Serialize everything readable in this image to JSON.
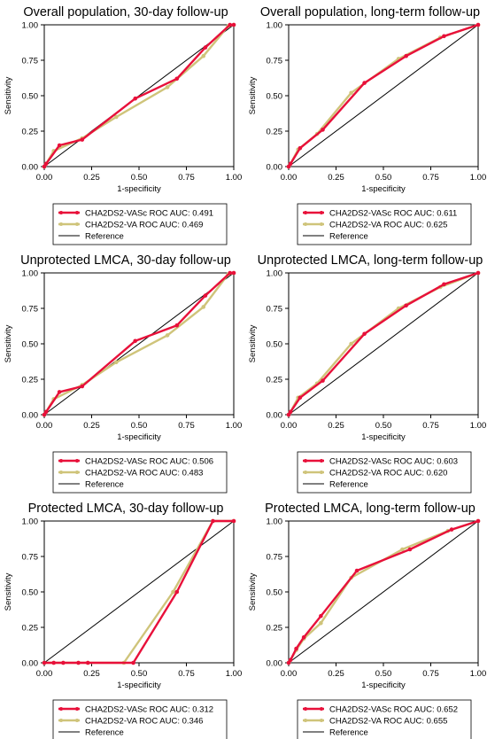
{
  "colors": {
    "vasc": "#e8103a",
    "va": "#cfc47a",
    "reference": "#000000",
    "frame": "#000000"
  },
  "chart_data": [
    {
      "type": "line",
      "title": "Overall population, 30-day follow-up",
      "xlabel": "1-specificity",
      "ylabel": "Sensitivity",
      "xlim": [
        0,
        1
      ],
      "ylim": [
        0,
        1
      ],
      "xticks": [
        "0.00",
        "0.25",
        "0.50",
        "0.75",
        "1.00"
      ],
      "yticks": [
        "0.00",
        "0.25",
        "0.50",
        "0.75",
        "1.00"
      ],
      "legend": "below",
      "series": [
        {
          "name": "CHA2DS2-VASc ROC AUC: 0.491",
          "color_key": "vasc",
          "x": [
            0,
            0.01,
            0.08,
            0.2,
            0.48,
            0.7,
            0.85,
            0.98,
            1
          ],
          "y": [
            0,
            0.02,
            0.15,
            0.19,
            0.48,
            0.62,
            0.84,
            1.0,
            1
          ]
        },
        {
          "name": "CHA2DS2-VA ROC AUC: 0.469",
          "color_key": "va",
          "x": [
            0,
            0.01,
            0.05,
            0.2,
            0.38,
            0.65,
            0.84,
            0.97,
            1
          ],
          "y": [
            0,
            0.02,
            0.11,
            0.2,
            0.35,
            0.56,
            0.78,
            0.99,
            1
          ]
        },
        {
          "name": "Reference",
          "color_key": "reference",
          "reference": true,
          "x": [
            0,
            1
          ],
          "y": [
            0,
            1
          ]
        }
      ]
    },
    {
      "type": "line",
      "title": "Overall population, long-term follow-up",
      "xlabel": "1-specificity",
      "ylabel": "Sensitivity",
      "xlim": [
        0,
        1
      ],
      "ylim": [
        0,
        1
      ],
      "xticks": [
        "0.00",
        "0.25",
        "0.50",
        "0.75",
        "1.00"
      ],
      "yticks": [
        "0.00",
        "0.25",
        "0.50",
        "0.75",
        "1.00"
      ],
      "legend": "below",
      "series": [
        {
          "name": "CHA2DS2-VASc ROC AUC: 0.611",
          "color_key": "vasc",
          "x": [
            0,
            0.01,
            0.06,
            0.18,
            0.4,
            0.62,
            0.82,
            1
          ],
          "y": [
            0,
            0.02,
            0.13,
            0.26,
            0.59,
            0.78,
            0.92,
            1
          ]
        },
        {
          "name": "CHA2DS2-VA ROC AUC: 0.625",
          "color_key": "va",
          "x": [
            0,
            0.01,
            0.05,
            0.15,
            0.33,
            0.58,
            0.8,
            1
          ],
          "y": [
            0,
            0.02,
            0.12,
            0.23,
            0.52,
            0.76,
            0.91,
            1
          ]
        },
        {
          "name": "Reference",
          "color_key": "reference",
          "reference": true,
          "x": [
            0,
            1
          ],
          "y": [
            0,
            1
          ]
        }
      ]
    },
    {
      "type": "line",
      "title": "Unprotected LMCA, 30-day follow-up",
      "xlabel": "1-specificity",
      "ylabel": "Sensitivity",
      "xlim": [
        0,
        1
      ],
      "ylim": [
        0,
        1
      ],
      "xticks": [
        "0.00",
        "0.25",
        "0.50",
        "0.75",
        "1.00"
      ],
      "yticks": [
        "0.00",
        "0.25",
        "0.50",
        "0.75",
        "1.00"
      ],
      "legend": "below",
      "series": [
        {
          "name": "CHA2DS2-VASc ROC AUC: 0.506",
          "color_key": "vasc",
          "x": [
            0,
            0.01,
            0.08,
            0.2,
            0.48,
            0.7,
            0.85,
            0.98,
            1
          ],
          "y": [
            0,
            0.02,
            0.16,
            0.2,
            0.52,
            0.63,
            0.84,
            1.0,
            1
          ]
        },
        {
          "name": "CHA2DS2-VA ROC AUC: 0.483",
          "color_key": "va",
          "x": [
            0,
            0.01,
            0.05,
            0.2,
            0.38,
            0.65,
            0.84,
            0.97,
            1
          ],
          "y": [
            0,
            0.02,
            0.11,
            0.21,
            0.37,
            0.56,
            0.76,
            0.99,
            1
          ]
        },
        {
          "name": "Reference",
          "color_key": "reference",
          "reference": true,
          "x": [
            0,
            1
          ],
          "y": [
            0,
            1
          ]
        }
      ]
    },
    {
      "type": "line",
      "title": "Unprotected LMCA, long-term follow-up",
      "xlabel": "1-specificity",
      "ylabel": "Sensitivity",
      "xlim": [
        0,
        1
      ],
      "ylim": [
        0,
        1
      ],
      "xticks": [
        "0.00",
        "0.25",
        "0.50",
        "0.75",
        "1.00"
      ],
      "yticks": [
        "0.00",
        "0.25",
        "0.50",
        "0.75",
        "1.00"
      ],
      "legend": "below",
      "series": [
        {
          "name": "CHA2DS2-VASc ROC AUC: 0.603",
          "color_key": "vasc",
          "x": [
            0,
            0.01,
            0.06,
            0.18,
            0.4,
            0.62,
            0.82,
            1
          ],
          "y": [
            0,
            0.02,
            0.12,
            0.24,
            0.57,
            0.77,
            0.92,
            1
          ]
        },
        {
          "name": "CHA2DS2-VA ROC AUC: 0.620",
          "color_key": "va",
          "x": [
            0,
            0.01,
            0.05,
            0.15,
            0.33,
            0.58,
            0.8,
            1
          ],
          "y": [
            0,
            0.02,
            0.12,
            0.22,
            0.5,
            0.75,
            0.9,
            1
          ]
        },
        {
          "name": "Reference",
          "color_key": "reference",
          "reference": true,
          "x": [
            0,
            1
          ],
          "y": [
            0,
            1
          ]
        }
      ]
    },
    {
      "type": "line",
      "title": "Protected LMCA, 30-day follow-up",
      "xlabel": "1-specificity",
      "ylabel": "Sensitivity",
      "xlim": [
        0,
        1
      ],
      "ylim": [
        0,
        1
      ],
      "xticks": [
        "0.00",
        "0.25",
        "0.50",
        "0.75",
        "1.00"
      ],
      "yticks": [
        "0.00",
        "0.25",
        "0.50",
        "0.75",
        "1.00"
      ],
      "legend": "below",
      "series": [
        {
          "name": "CHA2DS2-VASc ROC AUC: 0.312",
          "color_key": "vasc",
          "x": [
            0,
            0.05,
            0.1,
            0.18,
            0.23,
            0.47,
            0.7,
            0.89,
            1
          ],
          "y": [
            0,
            0,
            0,
            0,
            0,
            0,
            0.5,
            1.0,
            1
          ]
        },
        {
          "name": "CHA2DS2-VA ROC AUC: 0.346",
          "color_key": "va",
          "x": [
            0,
            0.05,
            0.1,
            0.18,
            0.23,
            0.42,
            0.68,
            0.89,
            1
          ],
          "y": [
            0,
            0,
            0,
            0,
            0,
            0,
            0.5,
            1.0,
            1
          ]
        },
        {
          "name": "Reference",
          "color_key": "reference",
          "reference": true,
          "x": [
            0,
            1
          ],
          "y": [
            0,
            1
          ]
        }
      ]
    },
    {
      "type": "line",
      "title": "Protected LMCA, long-term follow-up",
      "xlabel": "1-specificity",
      "ylabel": "Sensitivity",
      "xlim": [
        0,
        1
      ],
      "ylim": [
        0,
        1
      ],
      "xticks": [
        "0.00",
        "0.25",
        "0.50",
        "0.75",
        "1.00"
      ],
      "yticks": [
        "0.00",
        "0.25",
        "0.50",
        "0.75",
        "1.00"
      ],
      "legend": "below",
      "series": [
        {
          "name": "CHA2DS2-VASc ROC AUC: 0.652",
          "color_key": "vasc",
          "x": [
            0,
            0.01,
            0.04,
            0.08,
            0.17,
            0.36,
            0.64,
            0.86,
            1
          ],
          "y": [
            0,
            0.02,
            0.1,
            0.18,
            0.33,
            0.65,
            0.8,
            0.94,
            1
          ]
        },
        {
          "name": "CHA2DS2-VA ROC AUC: 0.655",
          "color_key": "va",
          "x": [
            0,
            0.01,
            0.04,
            0.08,
            0.17,
            0.33,
            0.6,
            0.84,
            1
          ],
          "y": [
            0,
            0.02,
            0.09,
            0.17,
            0.28,
            0.6,
            0.8,
            0.93,
            1
          ]
        },
        {
          "name": "Reference",
          "color_key": "reference",
          "reference": true,
          "x": [
            0,
            1
          ],
          "y": [
            0,
            1
          ]
        }
      ]
    }
  ]
}
